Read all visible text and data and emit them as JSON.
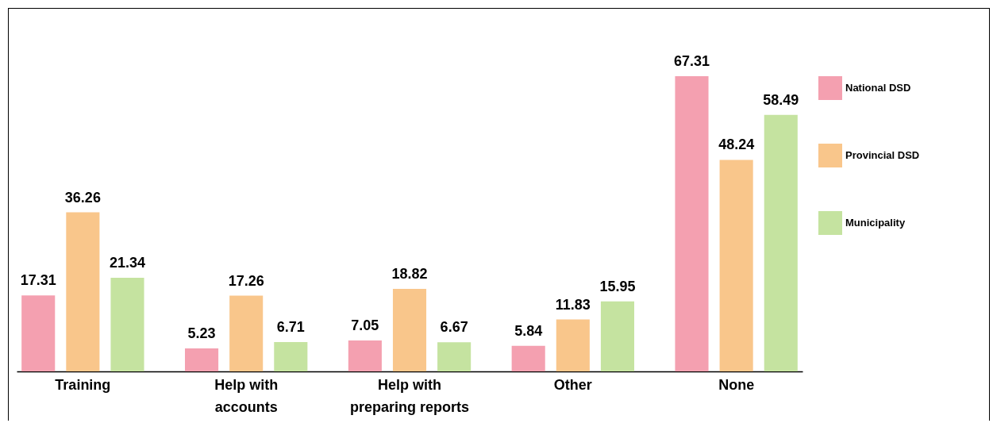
{
  "chart_data": {
    "type": "bar",
    "categories": [
      "Training",
      "Help with accounts",
      "Help with preparing reports",
      "Other",
      "None"
    ],
    "series": [
      {
        "name": "National DSD",
        "color": "#f4a0b0",
        "values": [
          17.31,
          5.23,
          7.05,
          5.84,
          67.31
        ]
      },
      {
        "name": "Provincial DSD",
        "color": "#f9c68b",
        "values": [
          36.26,
          17.26,
          18.82,
          11.83,
          48.24
        ]
      },
      {
        "name": "Municipality",
        "color": "#c5e3a0",
        "values": [
          21.34,
          6.71,
          6.67,
          15.95,
          58.49
        ]
      }
    ],
    "data_labels": true,
    "legend": "right",
    "grid": false
  }
}
